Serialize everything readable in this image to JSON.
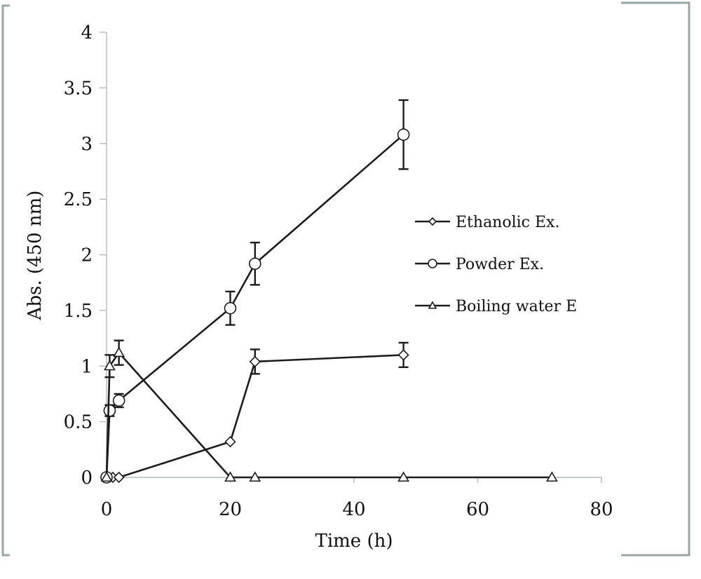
{
  "chart_data": {
    "type": "line",
    "title": "",
    "xlabel": "Time (h)",
    "ylabel": "Abs. (450 nm)",
    "xlim": [
      0,
      80
    ],
    "ylim": [
      0,
      4
    ],
    "x_ticks": [
      0,
      20,
      40,
      60,
      80
    ],
    "y_ticks": [
      0,
      0.5,
      1,
      1.5,
      2,
      2.5,
      3,
      3.5,
      4
    ],
    "y_tick_labels": [
      "0",
      "0.5",
      "1",
      "1.5",
      "2",
      "2.5",
      "3",
      "3.5",
      "4"
    ],
    "x_tick_labels": [
      "0",
      "20",
      "40",
      "60",
      "80"
    ],
    "grid": false,
    "legend_position": "right-center",
    "series": [
      {
        "name": "Ethanolic Ex.",
        "marker": "diamond",
        "x": [
          0,
          1,
          2,
          20,
          24,
          48
        ],
        "y": [
          0,
          0,
          0,
          0.32,
          1.04,
          1.1
        ],
        "error": [
          0,
          0,
          0,
          0.02,
          0.11,
          0.11
        ]
      },
      {
        "name": "Powder Ex.",
        "marker": "circle",
        "x": [
          0,
          0.5,
          2,
          20,
          24,
          48
        ],
        "y": [
          0,
          0.6,
          0.69,
          1.52,
          1.92,
          3.08
        ],
        "error": [
          0,
          0.05,
          0.06,
          0.15,
          0.19,
          0.31
        ]
      },
      {
        "name": "Boiling water E",
        "marker": "triangle",
        "x": [
          0,
          0.5,
          2,
          20,
          24,
          48,
          72
        ],
        "y": [
          0,
          1.0,
          1.12,
          0,
          0,
          0,
          0
        ],
        "error": [
          0,
          0.1,
          0.11,
          0,
          0,
          0,
          0
        ]
      }
    ]
  }
}
